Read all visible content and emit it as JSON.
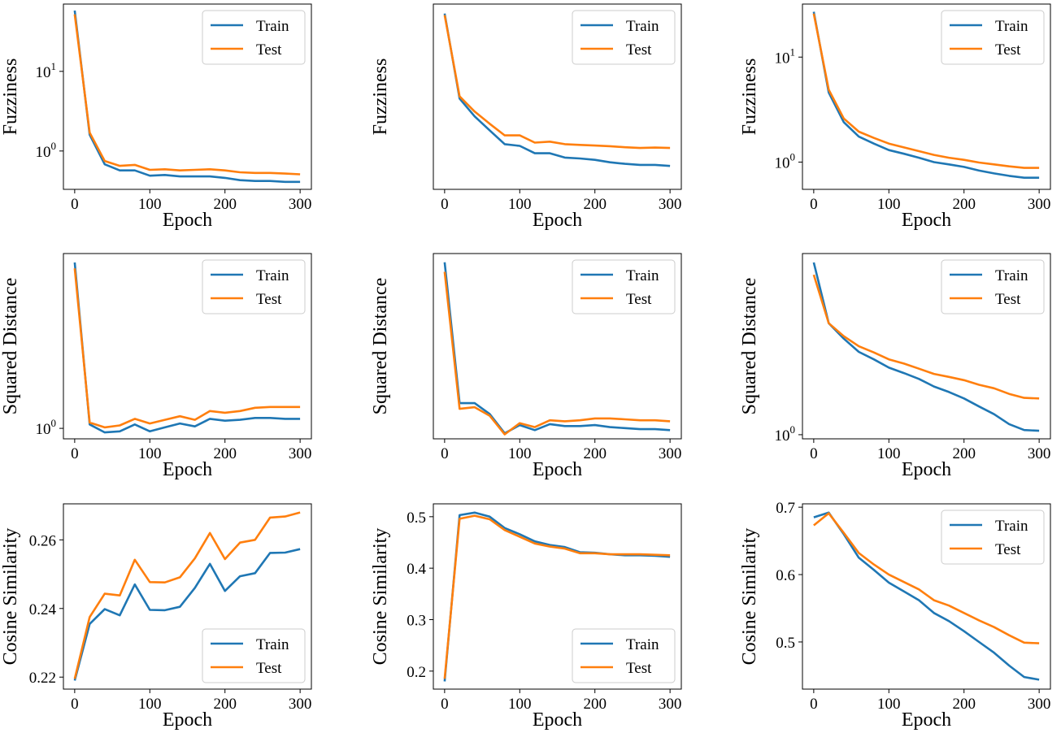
{
  "colors": {
    "train": "#1f77b4",
    "test": "#ff7f0e",
    "frame": "#000000"
  },
  "chart_data": [
    {
      "type": "line",
      "scale": "log",
      "xlabel": "Epoch",
      "ylabel": "Fuzziness",
      "xlim": [
        -15,
        315
      ],
      "ylim": [
        0.33,
        70
      ],
      "xticks": [
        0,
        100,
        200,
        300
      ],
      "yticks": [
        {
          "value": 1,
          "label": "10^0"
        },
        {
          "value": 10,
          "label": "10^1"
        }
      ],
      "legend": "top-right",
      "x": [
        0,
        20,
        40,
        60,
        80,
        100,
        120,
        140,
        160,
        180,
        200,
        220,
        240,
        260,
        280,
        300
      ],
      "series": [
        {
          "name": "Train",
          "color_key": "train",
          "values": [
            58,
            1.6,
            0.68,
            0.57,
            0.57,
            0.49,
            0.5,
            0.48,
            0.48,
            0.48,
            0.46,
            0.43,
            0.42,
            0.42,
            0.41,
            0.41
          ]
        },
        {
          "name": "Test",
          "color_key": "test",
          "values": [
            52,
            1.7,
            0.75,
            0.65,
            0.67,
            0.58,
            0.59,
            0.57,
            0.58,
            0.59,
            0.57,
            0.54,
            0.53,
            0.53,
            0.52,
            0.51
          ]
        }
      ]
    },
    {
      "type": "line",
      "scale": "log",
      "xlabel": "Epoch",
      "ylabel": "Fuzziness",
      "xlim": [
        -15,
        315
      ],
      "ylim": [
        0.45,
        35
      ],
      "xticks": [
        0,
        100,
        200,
        300
      ],
      "yticks": [],
      "legend": "top-right",
      "x": [
        0,
        20,
        40,
        60,
        80,
        100,
        120,
        140,
        160,
        180,
        200,
        220,
        240,
        260,
        280,
        300
      ],
      "series": [
        {
          "name": "Train",
          "color_key": "train",
          "values": [
            28,
            3.8,
            2.5,
            1.8,
            1.3,
            1.25,
            1.05,
            1.05,
            0.95,
            0.93,
            0.9,
            0.85,
            0.82,
            0.8,
            0.8,
            0.78
          ]
        },
        {
          "name": "Test",
          "color_key": "test",
          "values": [
            27,
            4.0,
            2.8,
            2.1,
            1.6,
            1.6,
            1.35,
            1.38,
            1.3,
            1.28,
            1.26,
            1.24,
            1.21,
            1.19,
            1.2,
            1.19
          ]
        }
      ]
    },
    {
      "type": "line",
      "scale": "log",
      "xlabel": "Epoch",
      "ylabel": "Fuzziness",
      "xlim": [
        -15,
        315
      ],
      "ylim": [
        0.55,
        32
      ],
      "xticks": [
        0,
        100,
        200,
        300
      ],
      "yticks": [
        {
          "value": 1,
          "label": "10^0"
        },
        {
          "value": 10,
          "label": "10^1"
        }
      ],
      "legend": "top-right",
      "x": [
        0,
        20,
        40,
        60,
        80,
        100,
        120,
        140,
        160,
        180,
        200,
        220,
        240,
        260,
        280,
        300
      ],
      "series": [
        {
          "name": "Train",
          "color_key": "train",
          "values": [
            27,
            4.6,
            2.4,
            1.75,
            1.5,
            1.3,
            1.2,
            1.1,
            1.0,
            0.95,
            0.9,
            0.83,
            0.78,
            0.74,
            0.71,
            0.71
          ]
        },
        {
          "name": "Test",
          "color_key": "test",
          "values": [
            26,
            4.9,
            2.6,
            1.95,
            1.7,
            1.5,
            1.38,
            1.27,
            1.17,
            1.1,
            1.05,
            0.99,
            0.95,
            0.91,
            0.88,
            0.88
          ]
        }
      ]
    },
    {
      "type": "line",
      "scale": "log",
      "xlabel": "Epoch",
      "ylabel": "Squared Distance",
      "xlim": [
        -15,
        315
      ],
      "ylim": [
        0.9,
        5.8
      ],
      "xticks": [
        0,
        100,
        200,
        300
      ],
      "yticks": [
        {
          "value": 1,
          "label": "10^0"
        }
      ],
      "legend": "top-right",
      "x": [
        0,
        20,
        40,
        60,
        80,
        100,
        120,
        140,
        160,
        180,
        200,
        220,
        240,
        260,
        280,
        300
      ],
      "series": [
        {
          "name": "Train",
          "color_key": "train",
          "values": [
            5.3,
            1.04,
            0.96,
            0.97,
            1.04,
            0.97,
            1.01,
            1.05,
            1.02,
            1.1,
            1.08,
            1.09,
            1.11,
            1.11,
            1.1,
            1.1
          ]
        },
        {
          "name": "Test",
          "color_key": "test",
          "values": [
            5.0,
            1.06,
            1.01,
            1.03,
            1.1,
            1.05,
            1.09,
            1.13,
            1.09,
            1.19,
            1.17,
            1.19,
            1.23,
            1.24,
            1.24,
            1.24
          ]
        }
      ]
    },
    {
      "type": "line",
      "scale": "log",
      "xlabel": "Epoch",
      "ylabel": "Squared Distance",
      "xlim": [
        -15,
        315
      ],
      "ylim": [
        0.85,
        5.8
      ],
      "xticks": [
        0,
        100,
        200,
        300
      ],
      "yticks": [],
      "legend": "top-right",
      "x": [
        0,
        20,
        40,
        60,
        80,
        100,
        120,
        140,
        160,
        180,
        200,
        220,
        240,
        260,
        280,
        300
      ],
      "series": [
        {
          "name": "Train",
          "color_key": "train",
          "values": [
            5.3,
            1.23,
            1.23,
            1.1,
            0.9,
            0.98,
            0.93,
            0.99,
            0.97,
            0.97,
            0.98,
            0.96,
            0.95,
            0.94,
            0.94,
            0.93
          ]
        },
        {
          "name": "Test",
          "color_key": "test",
          "values": [
            4.8,
            1.16,
            1.18,
            1.08,
            0.89,
            1.0,
            0.96,
            1.03,
            1.02,
            1.03,
            1.05,
            1.05,
            1.04,
            1.03,
            1.03,
            1.02
          ]
        }
      ]
    },
    {
      "type": "line",
      "scale": "log",
      "xlabel": "Epoch",
      "ylabel": "Squared Distance",
      "xlim": [
        -15,
        315
      ],
      "ylim": [
        0.95,
        9.5
      ],
      "xticks": [
        0,
        100,
        200,
        300
      ],
      "yticks": [
        {
          "value": 1,
          "label": "10^0"
        }
      ],
      "legend": "top-right",
      "x": [
        0,
        20,
        40,
        60,
        80,
        100,
        120,
        140,
        160,
        180,
        200,
        220,
        240,
        260,
        280,
        300
      ],
      "series": [
        {
          "name": "Train",
          "color_key": "train",
          "values": [
            8.5,
            4.0,
            3.3,
            2.8,
            2.55,
            2.3,
            2.15,
            2.0,
            1.82,
            1.7,
            1.57,
            1.42,
            1.29,
            1.14,
            1.06,
            1.05
          ]
        },
        {
          "name": "Test",
          "color_key": "test",
          "values": [
            7.3,
            4.0,
            3.4,
            3.0,
            2.78,
            2.55,
            2.42,
            2.27,
            2.13,
            2.05,
            1.97,
            1.86,
            1.78,
            1.66,
            1.58,
            1.57
          ]
        }
      ]
    },
    {
      "type": "line",
      "scale": "linear",
      "xlabel": "Epoch",
      "ylabel": "Cosine Similarity",
      "xlim": [
        -15,
        315
      ],
      "ylim": [
        0.2165,
        0.2705
      ],
      "xticks": [
        0,
        100,
        200,
        300
      ],
      "yticks": [
        {
          "value": 0.22,
          "label": "0.22"
        },
        {
          "value": 0.24,
          "label": "0.24"
        },
        {
          "value": 0.26,
          "label": "0.26"
        }
      ],
      "legend": "bottom-right",
      "x": [
        0,
        20,
        40,
        60,
        80,
        100,
        120,
        140,
        160,
        180,
        200,
        220,
        240,
        260,
        280,
        300
      ],
      "series": [
        {
          "name": "Train",
          "color_key": "train",
          "values": [
            0.219,
            0.2355,
            0.2398,
            0.238,
            0.247,
            0.2396,
            0.2395,
            0.2405,
            0.246,
            0.253,
            0.2451,
            0.2494,
            0.2503,
            0.2562,
            0.2563,
            0.2573
          ]
        },
        {
          "name": "Test",
          "color_key": "test",
          "values": [
            0.2195,
            0.2375,
            0.2443,
            0.2438,
            0.2542,
            0.2477,
            0.2476,
            0.2491,
            0.2546,
            0.262,
            0.2544,
            0.2592,
            0.26,
            0.2665,
            0.2668,
            0.268
          ]
        }
      ]
    },
    {
      "type": "line",
      "scale": "linear",
      "xlabel": "Epoch",
      "ylabel": "Cosine Similarity",
      "xlim": [
        -15,
        315
      ],
      "ylim": [
        0.165,
        0.525
      ],
      "xticks": [
        0,
        100,
        200,
        300
      ],
      "yticks": [
        {
          "value": 0.2,
          "label": "0.2"
        },
        {
          "value": 0.3,
          "label": "0.3"
        },
        {
          "value": 0.4,
          "label": "0.4"
        },
        {
          "value": 0.5,
          "label": "0.5"
        }
      ],
      "legend": "bottom-right",
      "x": [
        0,
        20,
        40,
        60,
        80,
        100,
        120,
        140,
        160,
        180,
        200,
        220,
        240,
        260,
        280,
        300
      ],
      "series": [
        {
          "name": "Train",
          "color_key": "train",
          "values": [
            0.18,
            0.503,
            0.508,
            0.5,
            0.478,
            0.466,
            0.452,
            0.445,
            0.441,
            0.431,
            0.43,
            0.427,
            0.425,
            0.425,
            0.424,
            0.422
          ]
        },
        {
          "name": "Test",
          "color_key": "test",
          "values": [
            0.185,
            0.496,
            0.502,
            0.495,
            0.474,
            0.461,
            0.448,
            0.442,
            0.438,
            0.429,
            0.429,
            0.427,
            0.427,
            0.427,
            0.426,
            0.425
          ]
        }
      ]
    },
    {
      "type": "line",
      "scale": "linear",
      "xlabel": "Epoch",
      "ylabel": "Cosine Similarity",
      "xlim": [
        -15,
        315
      ],
      "ylim": [
        0.43,
        0.705
      ],
      "xticks": [
        0,
        100,
        200,
        300
      ],
      "yticks": [
        {
          "value": 0.5,
          "label": "0.5"
        },
        {
          "value": 0.6,
          "label": "0.6"
        },
        {
          "value": 0.7,
          "label": "0.7"
        }
      ],
      "legend": "top-right",
      "x": [
        0,
        20,
        40,
        60,
        80,
        100,
        120,
        140,
        160,
        180,
        200,
        220,
        240,
        260,
        280,
        300
      ],
      "series": [
        {
          "name": "Train",
          "color_key": "train",
          "values": [
            0.685,
            0.692,
            0.66,
            0.625,
            0.607,
            0.588,
            0.575,
            0.562,
            0.543,
            0.531,
            0.516,
            0.5,
            0.484,
            0.465,
            0.448,
            0.444
          ]
        },
        {
          "name": "Test",
          "color_key": "test",
          "values": [
            0.673,
            0.691,
            0.662,
            0.632,
            0.615,
            0.6,
            0.589,
            0.578,
            0.562,
            0.554,
            0.543,
            0.532,
            0.522,
            0.51,
            0.499,
            0.498
          ]
        }
      ]
    }
  ]
}
